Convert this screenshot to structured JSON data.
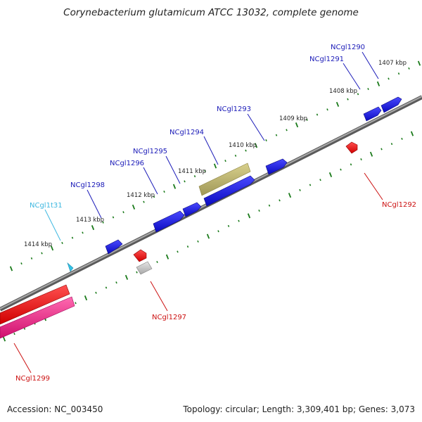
{
  "title": "Corynebacterium glutamicum ATCC 13032, complete genome",
  "accession_text": "Accession: NC_003450",
  "summary_text": "Topology: circular; Length: 3,309,401 bp; Genes: 3,073",
  "colors": {
    "backbone": "#8a8a8a",
    "forward_cds": "#1f1fe0",
    "reverse_cds": "#ee1a1a",
    "trna": "#33c3e6",
    "pseudo": "#b8b06e",
    "rrna": "#f02d8d",
    "grey_feature": "#c8c8c8",
    "tick": "#1a7a1a",
    "forward_label": "#1a1ab8",
    "reverse_label": "#cc1111",
    "trna_label": "#3cb7e0"
  },
  "kbp_labels": [
    "1407 kbp",
    "1408 kbp",
    "1409 kbp",
    "1410 kbp",
    "1411 kbp",
    "1412 kbp",
    "1413 kbp",
    "1414 kbp"
  ],
  "gene_labels": [
    {
      "text": "NCgl1290",
      "strand": "forward"
    },
    {
      "text": "NCgl1291",
      "strand": "forward"
    },
    {
      "text": "NCgl1293",
      "strand": "forward"
    },
    {
      "text": "NCgl1294",
      "strand": "forward"
    },
    {
      "text": "NCgl1295",
      "strand": "forward"
    },
    {
      "text": "NCgl1296",
      "strand": "forward"
    },
    {
      "text": "NCgl1298",
      "strand": "forward"
    },
    {
      "text": "NCgl1t31",
      "strand": "trna"
    },
    {
      "text": "NCgl1292",
      "strand": "reverse"
    },
    {
      "text": "NCgl1297",
      "strand": "reverse"
    },
    {
      "text": "NCgl1299",
      "strand": "reverse"
    }
  ]
}
